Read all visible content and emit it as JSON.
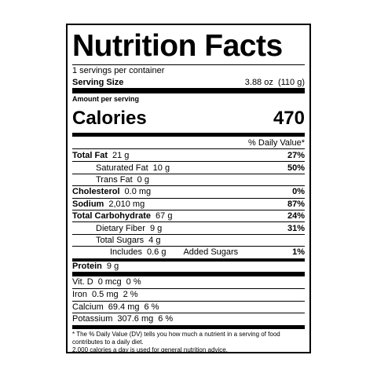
{
  "label": {
    "title": "Nutrition Facts",
    "servings": "1 servings per container",
    "serving_size": {
      "label": "Serving Size",
      "value": "3.88 oz  (110 g)"
    },
    "amount_per_serving": "Amount per serving",
    "calories": {
      "label": "Calories",
      "value": "470"
    },
    "dv_header": "% Daily Value*",
    "rows": [
      {
        "label": "Total Fat",
        "amount": "21 g",
        "dv": "27%"
      },
      {
        "label": "Saturated Fat",
        "amount": "10 g",
        "dv": "50%"
      },
      {
        "label": "Trans Fat",
        "amount": "0 g"
      },
      {
        "label": "Cholesterol",
        "amount": "0.0 mg",
        "dv": "0%"
      },
      {
        "label": "Sodium",
        "amount": "2,010 mg",
        "dv": "87%"
      },
      {
        "label": "Total Carbohydrate",
        "amount": "67 g",
        "dv": "24%"
      },
      {
        "label": "Dietary Fiber",
        "amount": "9 g",
        "dv": "31%"
      },
      {
        "label": "Total Sugars",
        "amount": "4 g"
      },
      {
        "label": "Includes",
        "amount": "0.6 g",
        "extra": "Added Sugars",
        "dv": "1%"
      },
      {
        "label": "Protein",
        "amount": "9 g"
      }
    ],
    "vitamins": [
      {
        "name": "Vit. D",
        "amount": "0 mcg",
        "dv": "0 %"
      },
      {
        "name": "Iron",
        "amount": "0.5 mg",
        "dv": "2 %"
      },
      {
        "name": "Calcium",
        "amount": "69.4 mg",
        "dv": "6 %"
      },
      {
        "name": "Potassium",
        "amount": "307.6 mg",
        "dv": "6 %"
      }
    ],
    "footnote": [
      "* The % Daily Value (DV) tells you how much a nutrient in a serving of food contributes to a daily diet.",
      "2,000 calories a day is used for general nutrition advice."
    ]
  }
}
